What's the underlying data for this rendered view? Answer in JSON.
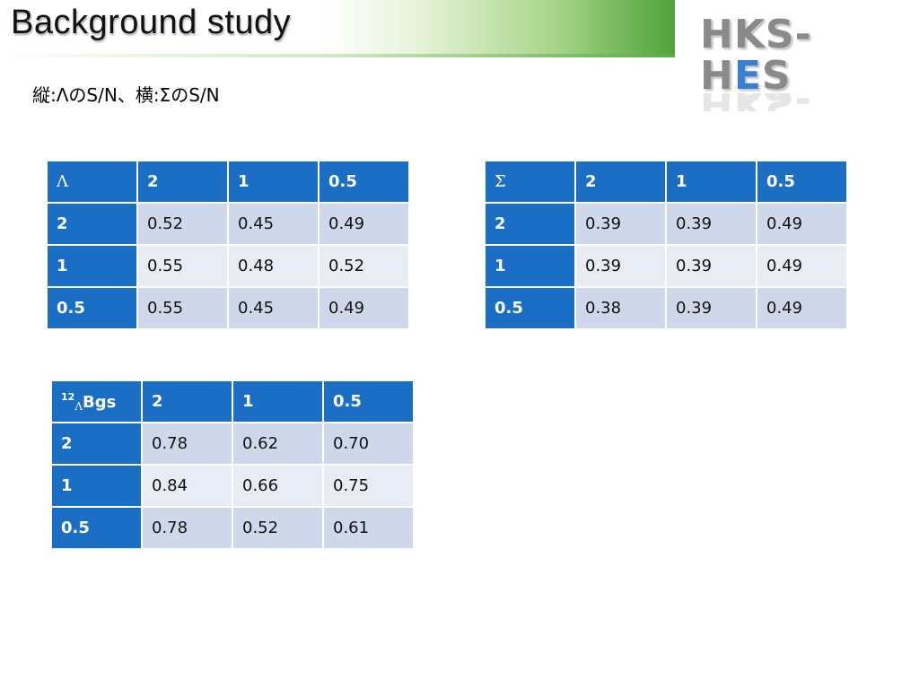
{
  "slide": {
    "title": "Background study",
    "subtitle": "縦:ΛのS/N、横:ΣのS/N"
  },
  "logo": {
    "text_a": "HK",
    "text_b": "S-H",
    "text_e": "E",
    "text_c": "S",
    "accent": "#3b7fd1"
  },
  "tables": {
    "lambda": {
      "corner": "Λ",
      "columns": [
        "2",
        "1",
        "0.5"
      ],
      "rows": [
        {
          "label": "2",
          "values": [
            "0.52",
            "0.45",
            "0.49"
          ]
        },
        {
          "label": "1",
          "values": [
            "0.55",
            "0.48",
            "0.52"
          ]
        },
        {
          "label": "0.5",
          "values": [
            "0.55",
            "0.45",
            "0.49"
          ]
        }
      ]
    },
    "sigma": {
      "corner": "Σ",
      "columns": [
        "2",
        "1",
        "0.5"
      ],
      "rows": [
        {
          "label": "2",
          "values": [
            "0.39",
            "0.39",
            "0.49"
          ]
        },
        {
          "label": "1",
          "values": [
            "0.39",
            "0.39",
            "0.49"
          ]
        },
        {
          "label": "0.5",
          "values": [
            "0.38",
            "0.39",
            "0.49"
          ]
        }
      ]
    },
    "hyper": {
      "corner_mass": "12",
      "corner_sub": "Λ",
      "corner_main": "Bgs",
      "columns": [
        "2",
        "1",
        "0.5"
      ],
      "rows": [
        {
          "label": "2",
          "values": [
            "0.78",
            "0.62",
            "0.70"
          ]
        },
        {
          "label": "1",
          "values": [
            "0.84",
            "0.66",
            "0.75"
          ]
        },
        {
          "label": "0.5",
          "values": [
            "0.78",
            "0.52",
            "0.61"
          ]
        }
      ]
    }
  },
  "colors": {
    "header_blue": "#1a6fc4",
    "row_dark": "#cfd8ea",
    "row_light": "#e8ecf5",
    "band_green": "#4fa33a"
  }
}
